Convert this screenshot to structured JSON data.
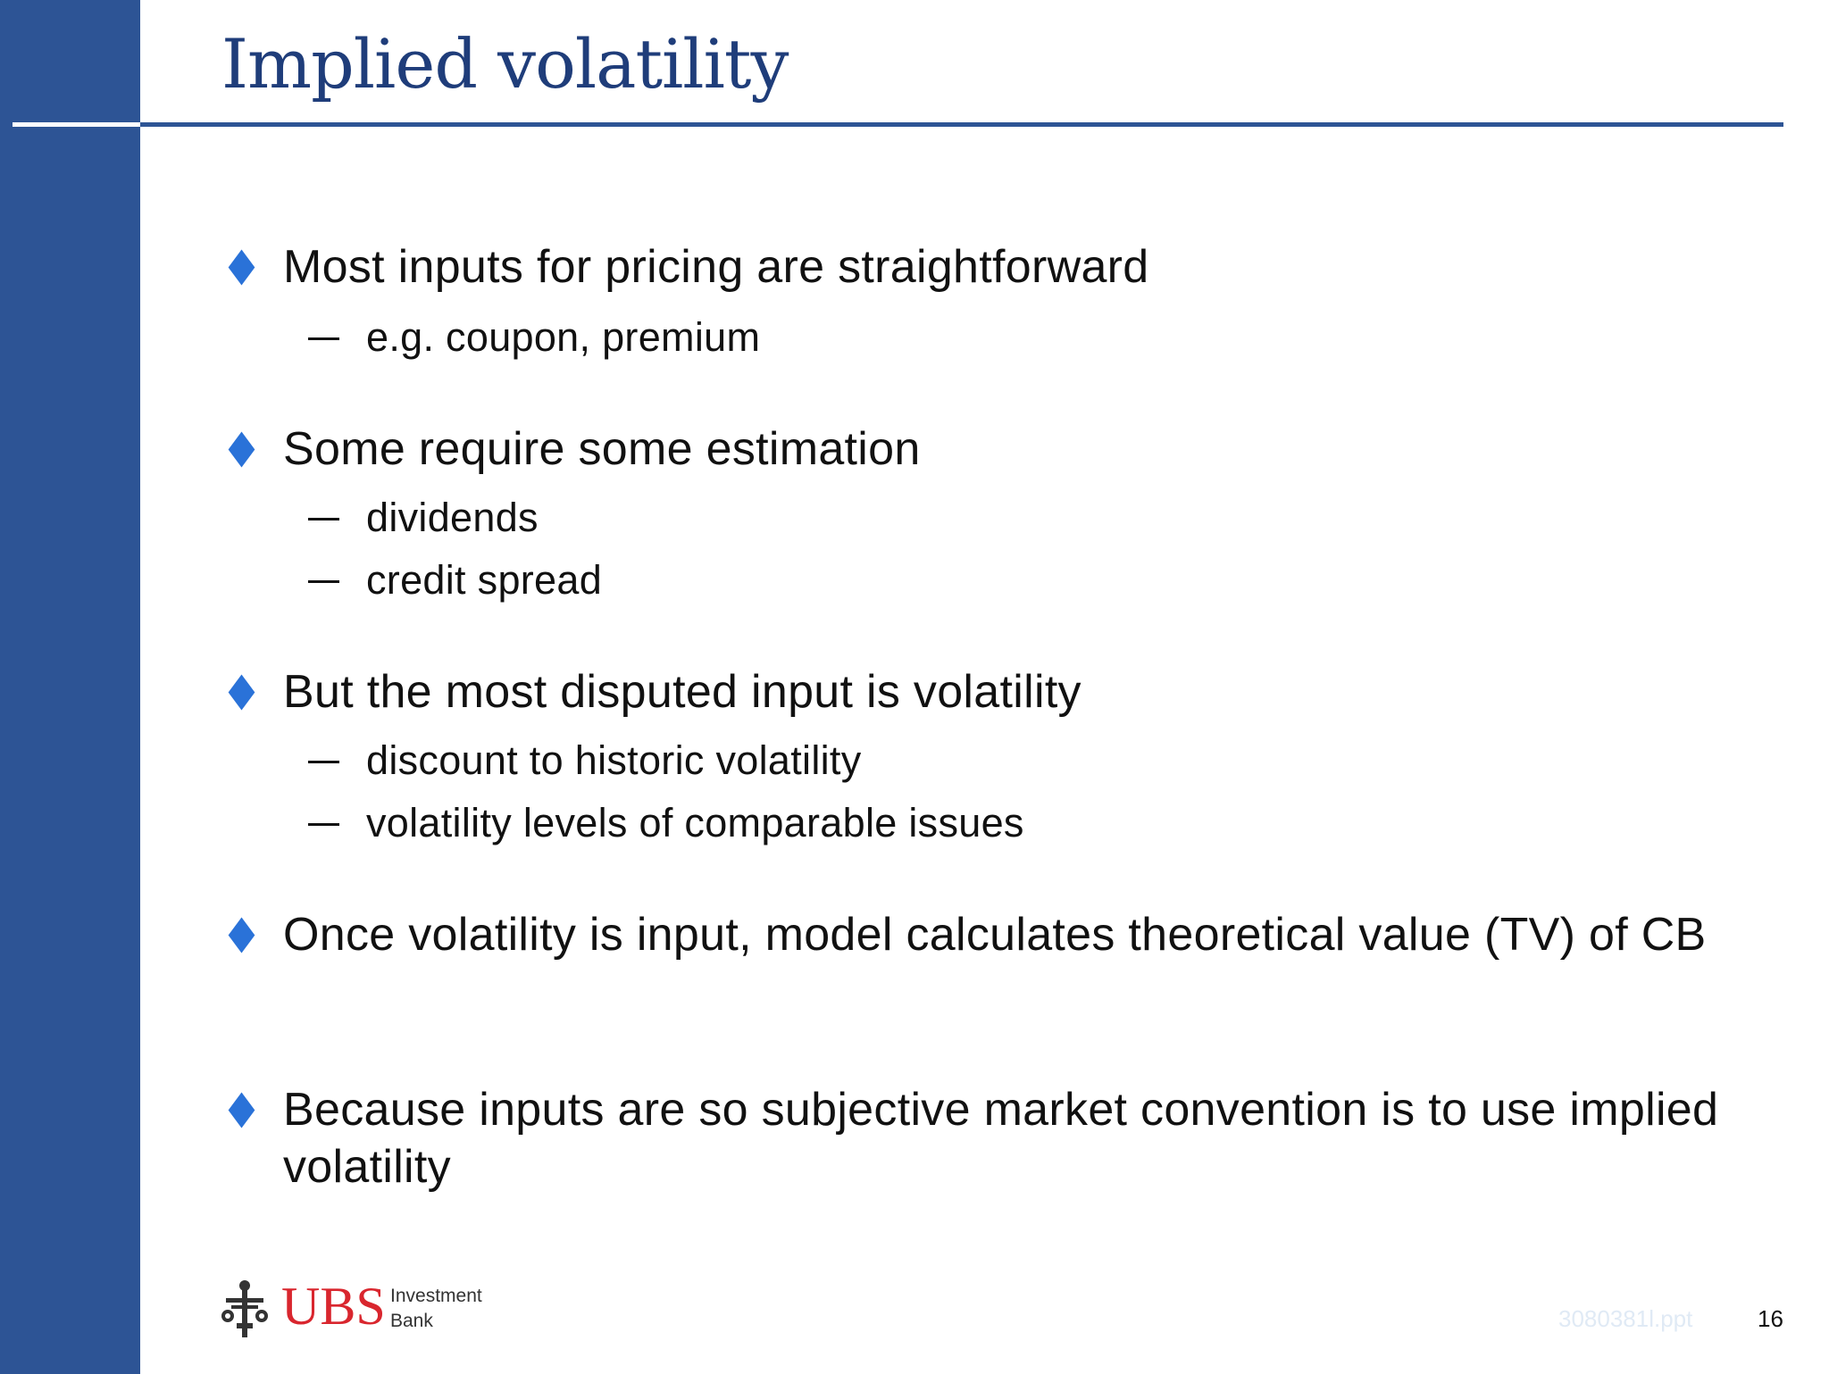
{
  "slide": {
    "title": "Implied volatility",
    "bullets": [
      {
        "text": "Most inputs for pricing are straightforward",
        "subs": [
          "e.g. coupon, premium"
        ]
      },
      {
        "text": "Some require some estimation",
        "subs": [
          "dividends",
          "credit spread"
        ]
      },
      {
        "text": "But the most disputed input is volatility",
        "subs": [
          "discount to historic volatility",
          "volatility levels of comparable issues"
        ]
      },
      {
        "text": "Once volatility is input, model calculates theoretical value (TV) of CB",
        "subs": []
      },
      {
        "text": "Because inputs are so subjective market convention is to use implied volatility",
        "subs": []
      }
    ]
  },
  "footer": {
    "logo_text": "UBS",
    "logo_line1": "Investment",
    "logo_line2": "Bank",
    "file_name": "3080381l.ppt",
    "page_number": "16"
  },
  "colors": {
    "sidebar": "#2d5495",
    "title": "#1f3d7a",
    "bullet": "#2a72d8",
    "logo_red": "#d9262e"
  }
}
